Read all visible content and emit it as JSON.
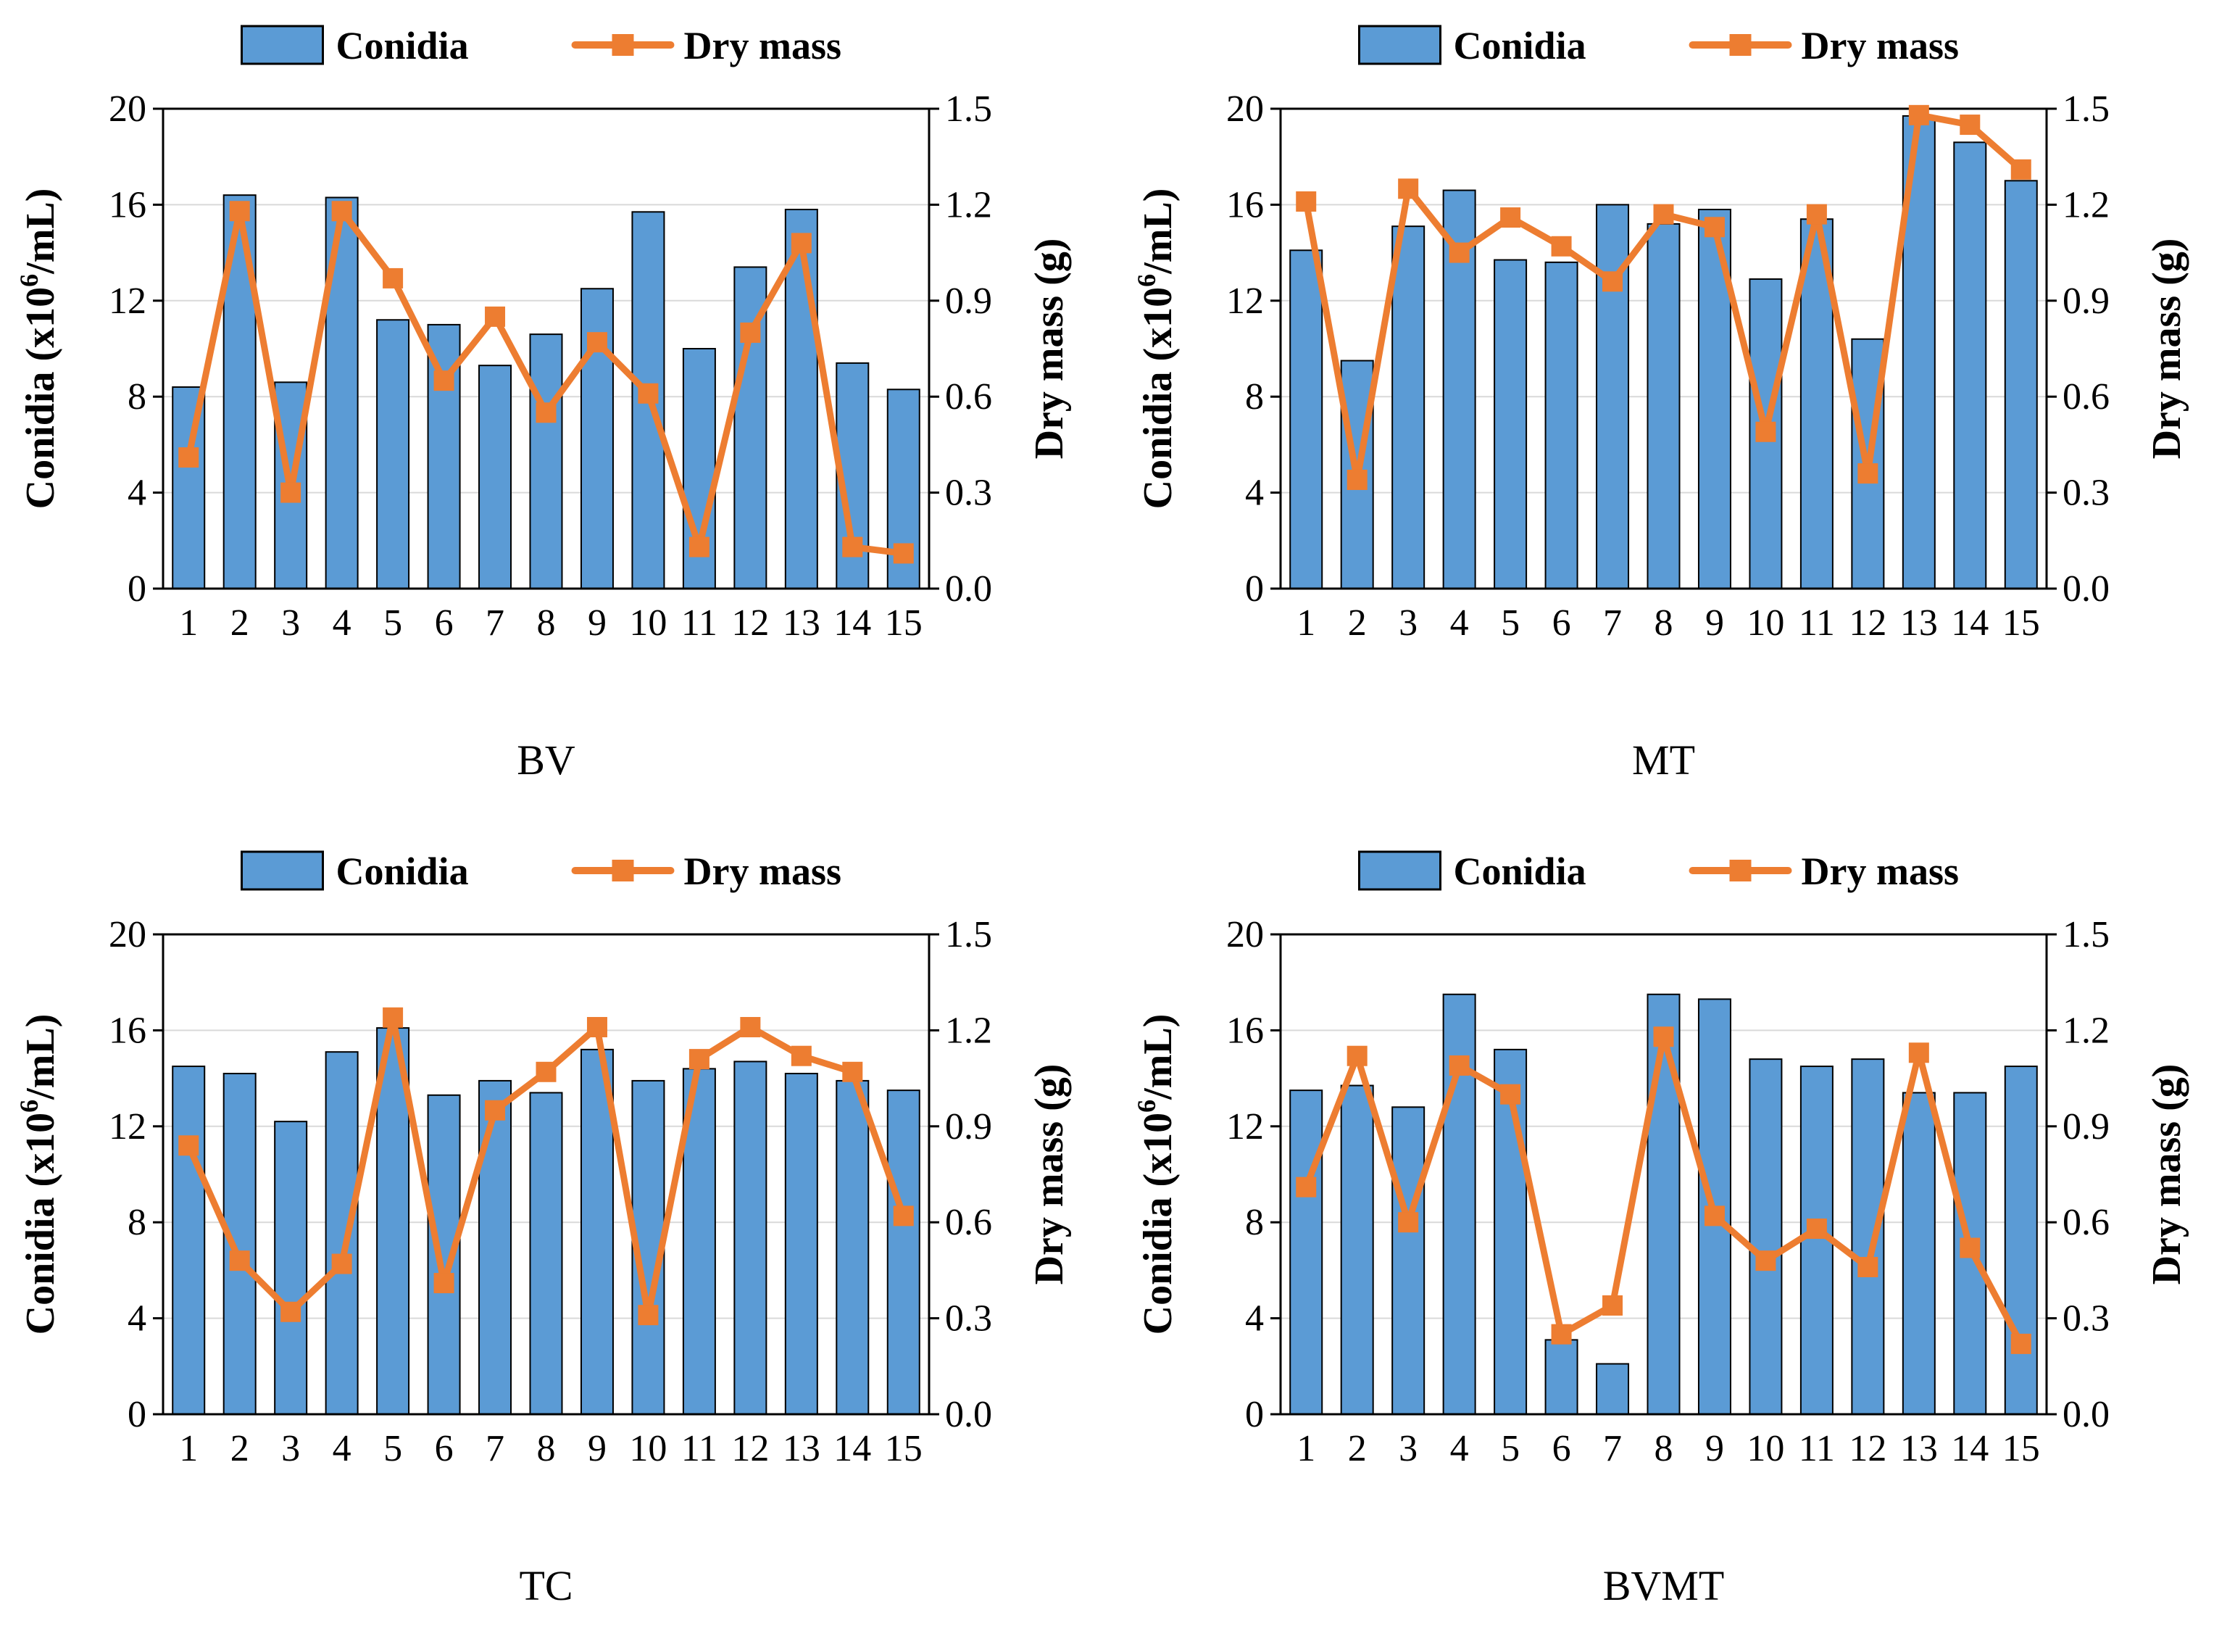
{
  "figure": {
    "background": "#FFFFFF"
  },
  "colors": {
    "bar_fill": "#5B9BD5",
    "bar_border": "#000000",
    "line": "#ED7D31",
    "grid": "#D9D9D9",
    "axis": "#000000",
    "text": "#000000"
  },
  "legend": {
    "conidia_label": "Conidia",
    "dry_mass_label": "Dry mass"
  },
  "axes": {
    "left_label": "Conidia (x10⁶/mL)",
    "left_label_main": "Conidia (x10",
    "left_label_sup": "6",
    "left_label_end": "/mL)",
    "right_label": "Dry mass (g)",
    "left_ticks": [
      "0",
      "4",
      "8",
      "12",
      "16",
      "20"
    ],
    "right_ticks": [
      "0.0",
      "0.3",
      "0.6",
      "0.9",
      "1.2",
      "1.5"
    ],
    "x_ticks": [
      "1",
      "2",
      "3",
      "4",
      "5",
      "6",
      "7",
      "8",
      "9",
      "10",
      "11",
      "12",
      "13",
      "14",
      "15"
    ]
  },
  "chart_data": [
    {
      "type": "bar+line",
      "title": "BV",
      "categories": [
        "1",
        "2",
        "3",
        "4",
        "5",
        "6",
        "7",
        "8",
        "9",
        "10",
        "11",
        "12",
        "13",
        "14",
        "15"
      ],
      "series": [
        {
          "name": "Conidia",
          "axis": "left",
          "values": [
            8.4,
            16.4,
            8.6,
            16.3,
            11.2,
            11.0,
            9.3,
            10.6,
            12.5,
            15.7,
            10.0,
            13.4,
            15.8,
            9.4,
            8.3
          ]
        },
        {
          "name": "Dry mass",
          "axis": "right",
          "values": [
            0.41,
            1.18,
            0.3,
            1.18,
            0.97,
            0.65,
            0.85,
            0.55,
            0.77,
            0.61,
            0.13,
            0.8,
            1.08,
            0.13,
            0.11
          ]
        }
      ],
      "left_ylabel": "Conidia (x10⁶/mL)",
      "right_ylabel": "Dry mass (g)",
      "left_ylim": [
        0,
        20
      ],
      "right_ylim": [
        0,
        1.5
      ],
      "grid": true,
      "legend_position": "top"
    },
    {
      "type": "bar+line",
      "title": "MT",
      "categories": [
        "1",
        "2",
        "3",
        "4",
        "5",
        "6",
        "7",
        "8",
        "9",
        "10",
        "11",
        "12",
        "13",
        "14",
        "15"
      ],
      "series": [
        {
          "name": "Conidia",
          "axis": "left",
          "values": [
            14.1,
            9.5,
            15.1,
            16.6,
            13.7,
            13.6,
            16.0,
            15.2,
            15.8,
            12.9,
            15.4,
            10.4,
            19.7,
            18.6,
            17.0
          ]
        },
        {
          "name": "Dry mass",
          "axis": "right",
          "values": [
            1.21,
            0.34,
            1.25,
            1.05,
            1.16,
            1.07,
            0.96,
            1.17,
            1.13,
            0.49,
            1.17,
            0.36,
            1.48,
            1.45,
            1.31
          ]
        }
      ],
      "left_ylabel": "Conidia (x10⁶/mL)",
      "right_ylabel": "Dry mass (g)",
      "left_ylim": [
        0,
        20
      ],
      "right_ylim": [
        0,
        1.5
      ],
      "grid": true,
      "legend_position": "top"
    },
    {
      "type": "bar+line",
      "title": "TC",
      "categories": [
        "1",
        "2",
        "3",
        "4",
        "5",
        "6",
        "7",
        "8",
        "9",
        "10",
        "11",
        "12",
        "13",
        "14",
        "15"
      ],
      "series": [
        {
          "name": "Conidia",
          "axis": "left",
          "values": [
            14.5,
            14.2,
            12.2,
            15.1,
            16.1,
            13.3,
            13.9,
            13.4,
            15.2,
            13.9,
            14.4,
            14.7,
            14.2,
            13.9,
            13.5
          ]
        },
        {
          "name": "Dry mass",
          "axis": "right",
          "values": [
            0.84,
            0.48,
            0.32,
            0.47,
            1.24,
            0.41,
            0.95,
            1.07,
            1.21,
            0.31,
            1.11,
            1.21,
            1.12,
            1.07,
            0.62
          ]
        }
      ],
      "left_ylabel": "Conidia (x10⁶/mL)",
      "right_ylabel": "Dry mass (g)",
      "left_ylim": [
        0,
        20
      ],
      "right_ylim": [
        0,
        1.5
      ],
      "grid": true,
      "legend_position": "top"
    },
    {
      "type": "bar+line",
      "title": "BVMT",
      "categories": [
        "1",
        "2",
        "3",
        "4",
        "5",
        "6",
        "7",
        "8",
        "9",
        "10",
        "11",
        "12",
        "13",
        "14",
        "15"
      ],
      "series": [
        {
          "name": "Conidia",
          "axis": "left",
          "values": [
            13.5,
            13.7,
            12.8,
            17.5,
            15.2,
            3.1,
            2.1,
            17.5,
            17.3,
            14.8,
            14.5,
            14.8,
            13.4,
            13.4,
            14.5
          ]
        },
        {
          "name": "Dry mass",
          "axis": "right",
          "values": [
            0.71,
            1.12,
            0.6,
            1.09,
            1.0,
            0.25,
            0.34,
            1.18,
            0.62,
            0.48,
            0.58,
            0.46,
            1.13,
            0.52,
            0.22
          ]
        }
      ],
      "left_ylabel": "Conidia (x10⁶/mL)",
      "right_ylabel": "Dry mass (g)",
      "left_ylim": [
        0,
        20
      ],
      "right_ylim": [
        0,
        1.5
      ],
      "grid": true,
      "legend_position": "top"
    }
  ]
}
